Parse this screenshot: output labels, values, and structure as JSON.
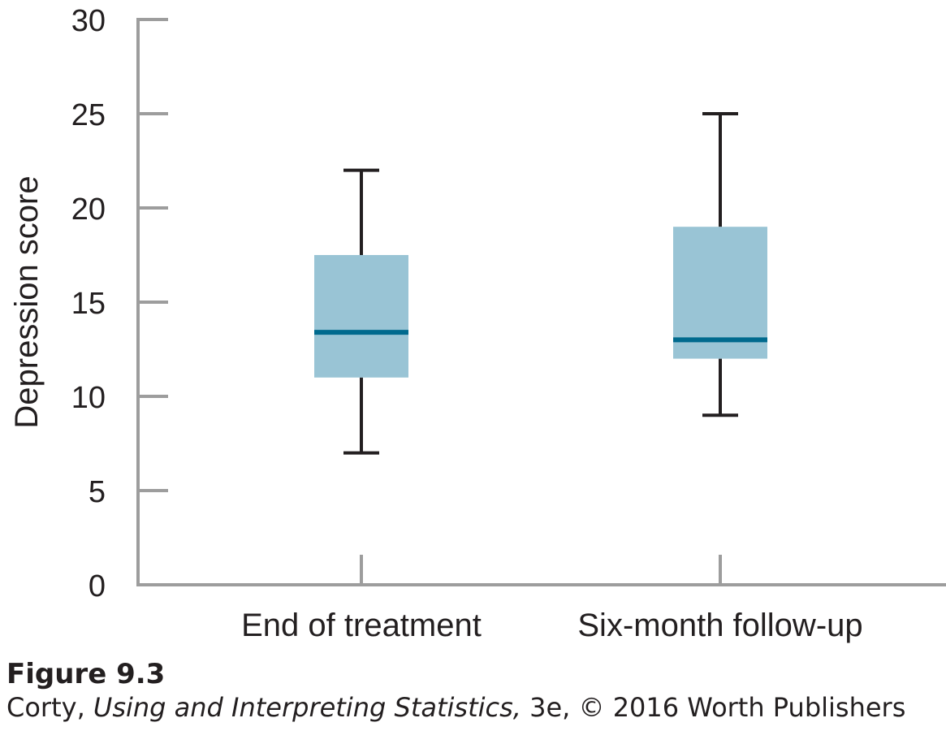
{
  "chart_data": {
    "type": "box",
    "title": "",
    "xlabel": "",
    "ylabel": "Depression score",
    "ylim": [
      0,
      30
    ],
    "yticks": [
      0,
      5,
      10,
      15,
      20,
      25,
      30
    ],
    "categories": [
      "End of treatment",
      "Six-month follow-up"
    ],
    "boxes": [
      {
        "category": "End of treatment",
        "min": 7,
        "q1": 11,
        "median": 13.4,
        "q3": 17.5,
        "max": 22
      },
      {
        "category": "Six-month follow-up",
        "min": 9,
        "q1": 12,
        "median": 13,
        "q3": 19,
        "max": 25
      }
    ],
    "colors": {
      "box_fill": "#99c4d5",
      "median_line": "#006a8e",
      "whisker": "#231f20",
      "axis": "#9d9d9d"
    }
  },
  "caption": {
    "figure_label": "Figure 9.3",
    "author": "Corty, ",
    "book_title": "Using and Interpreting Statistics,",
    "rest": " 3e, © 2016 Worth Publishers"
  }
}
